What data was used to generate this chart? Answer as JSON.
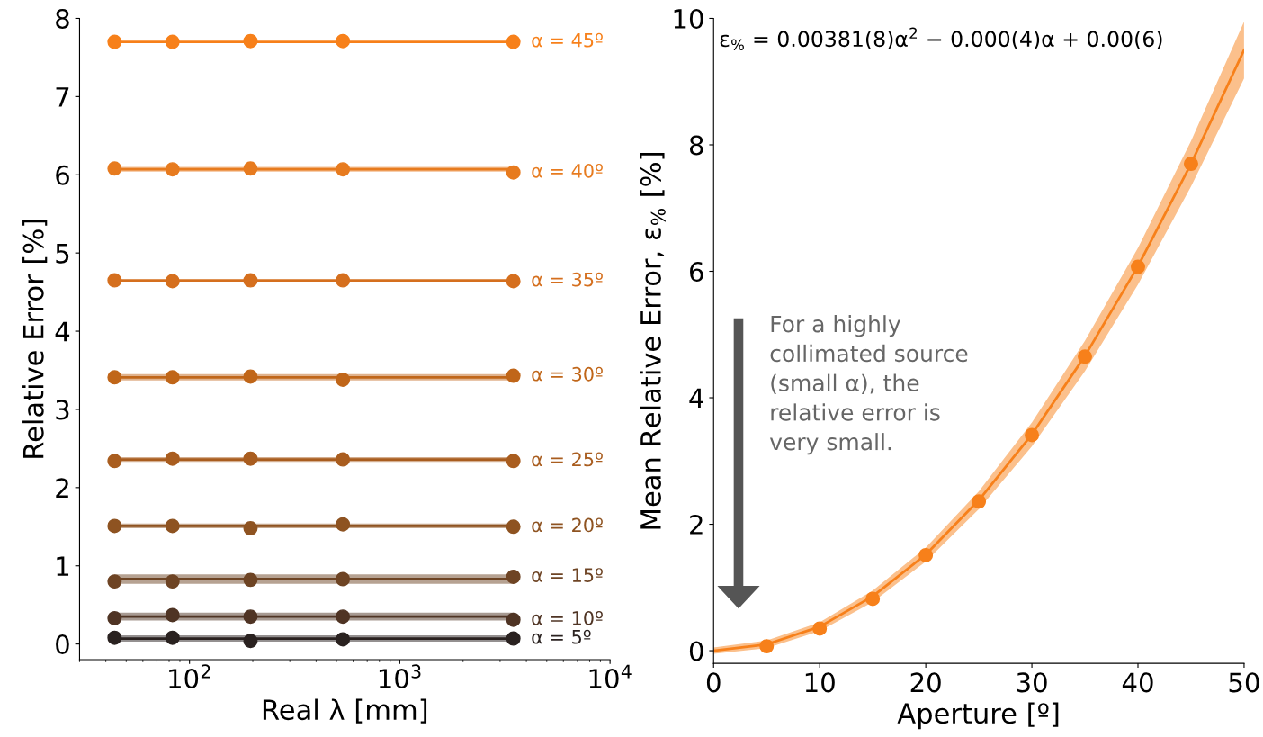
{
  "chart_data": [
    {
      "type": "line",
      "xlabel": "Real λ [mm]",
      "ylabel": "Relative Error [%]",
      "log": "x",
      "xlim": [
        30,
        10000
      ],
      "xticks": [
        {
          "value": 100,
          "label": "10$^{2}$"
        },
        {
          "value": 1000,
          "label": "10$^{3}$"
        },
        {
          "value": 10000,
          "label": "10$^{4}$"
        }
      ],
      "ylim": [
        -0.2,
        8
      ],
      "yticks": [
        0,
        1,
        2,
        3,
        4,
        5,
        6,
        7,
        8
      ],
      "series": [
        {
          "color": "#f7801a",
          "x": [
            44,
            3470
          ],
          "values": [
            7.7,
            7.7
          ]
        },
        {
          "name": "α = 45º",
          "type": "scatter",
          "marker": "circle",
          "color": "#f7801a",
          "x": [
            44,
            83,
            195,
            536,
            3470
          ],
          "values": [
            7.7,
            7.7,
            7.71,
            7.71,
            7.7
          ]
        },
        {
          "color": "#e77b1f",
          "x": [
            44,
            3470
          ],
          "values": [
            6.07,
            6.07
          ],
          "lower": [
            6.04,
            6.04
          ],
          "upper": [
            6.1,
            6.1
          ]
        },
        {
          "name": "α = 40º",
          "type": "scatter",
          "marker": "circle",
          "color": "#e77b1f",
          "x": [
            44,
            83,
            195,
            536,
            3470
          ],
          "values": [
            6.08,
            6.07,
            6.08,
            6.07,
            6.03
          ]
        },
        {
          "color": "#d56f1e",
          "x": [
            44,
            3470
          ],
          "values": [
            4.65,
            4.65
          ]
        },
        {
          "name": "α = 35º",
          "type": "scatter",
          "marker": "circle",
          "color": "#d56f1e",
          "x": [
            44,
            83,
            195,
            536,
            3470
          ],
          "values": [
            4.65,
            4.64,
            4.65,
            4.65,
            4.64
          ]
        },
        {
          "color": "#c06619",
          "x": [
            44,
            3470
          ],
          "values": [
            3.41,
            3.41
          ],
          "lower": [
            3.37,
            3.37
          ],
          "upper": [
            3.45,
            3.45
          ]
        },
        {
          "name": "α = 30º",
          "type": "scatter",
          "marker": "circle",
          "color": "#c06619",
          "x": [
            44,
            83,
            195,
            536,
            3470
          ],
          "values": [
            3.41,
            3.41,
            3.42,
            3.38,
            3.43
          ]
        },
        {
          "color": "#a95d1f",
          "x": [
            44,
            3470
          ],
          "values": [
            2.36,
            2.36
          ],
          "lower": [
            2.33,
            2.33
          ],
          "upper": [
            2.39,
            2.39
          ]
        },
        {
          "name": "α = 25º",
          "type": "scatter",
          "marker": "circle",
          "color": "#a95d1f",
          "x": [
            44,
            83,
            195,
            536,
            3470
          ],
          "values": [
            2.34,
            2.37,
            2.37,
            2.36,
            2.34
          ]
        },
        {
          "color": "#8e5321",
          "x": [
            44,
            3470
          ],
          "values": [
            1.51,
            1.51
          ],
          "lower": [
            1.48,
            1.48
          ],
          "upper": [
            1.54,
            1.54
          ]
        },
        {
          "name": "α = 20º",
          "type": "scatter",
          "marker": "circle",
          "color": "#8e5321",
          "x": [
            44,
            83,
            195,
            536,
            3470
          ],
          "values": [
            1.51,
            1.51,
            1.48,
            1.53,
            1.5
          ]
        },
        {
          "color": "#6e4424",
          "x": [
            44,
            3470
          ],
          "values": [
            0.83,
            0.83
          ],
          "lower": [
            0.77,
            0.77
          ],
          "upper": [
            0.89,
            0.89
          ]
        },
        {
          "name": "α = 15º",
          "type": "scatter",
          "marker": "circle",
          "color": "#6e4424",
          "x": [
            44,
            83,
            195,
            536,
            3470
          ],
          "values": [
            0.8,
            0.8,
            0.82,
            0.83,
            0.86
          ]
        },
        {
          "color": "#4f3424",
          "x": [
            44,
            3470
          ],
          "values": [
            0.35,
            0.35
          ],
          "lower": [
            0.3,
            0.3
          ],
          "upper": [
            0.4,
            0.4
          ]
        },
        {
          "name": "α = 10º",
          "type": "scatter",
          "marker": "circle",
          "color": "#4f3424",
          "x": [
            44,
            83,
            195,
            536,
            3470
          ],
          "values": [
            0.33,
            0.37,
            0.35,
            0.35,
            0.31
          ]
        },
        {
          "color": "#2a2220",
          "x": [
            44,
            3470
          ],
          "values": [
            0.07,
            0.07
          ],
          "lower": [
            0.03,
            0.03
          ],
          "upper": [
            0.11,
            0.11
          ]
        },
        {
          "name": "α = 5º",
          "type": "scatter",
          "marker": "circle",
          "color": "#2a2220",
          "x": [
            44,
            83,
            195,
            536,
            3470
          ],
          "values": [
            0.08,
            0.08,
            0.04,
            0.06,
            0.07
          ]
        }
      ]
    },
    {
      "type": "line",
      "xlabel": "Aperture [º]",
      "ylabel": "Mean Relative Error, ε$_{%}$ [%]",
      "xlim": [
        0,
        50
      ],
      "xticks": [
        0,
        10,
        20,
        30,
        40,
        50
      ],
      "ylim": [
        -0.2,
        10
      ],
      "yticks": [
        0,
        2,
        4,
        6,
        8,
        10
      ],
      "annotations": [
        "ε$_{%}$ = 0.00381(8)α$^{2}$ − 0.000(4)α + 0.00(6)",
        "For a highly\ncollimated source\n(small α), the\nrelative error is\nvery small."
      ],
      "series": [
        {
          "color": "#f7801a",
          "x": [
            0,
            5,
            10,
            15,
            20,
            25,
            30,
            35,
            40,
            45,
            50
          ],
          "values": [
            0.0,
            0.1,
            0.38,
            0.86,
            1.52,
            2.38,
            3.42,
            4.66,
            6.08,
            7.7,
            9.5
          ],
          "lower": [
            -0.05,
            0.04,
            0.31,
            0.77,
            1.41,
            2.24,
            3.23,
            4.42,
            5.79,
            7.34,
            9.05
          ],
          "upper": [
            0.05,
            0.16,
            0.45,
            0.95,
            1.63,
            2.52,
            3.61,
            4.9,
            6.37,
            8.06,
            9.95
          ]
        },
        {
          "type": "scatter",
          "marker": "circle",
          "color": "#f7801a",
          "x": [
            5,
            10,
            15,
            20,
            25,
            30,
            35,
            40,
            45
          ],
          "values": [
            0.07,
            0.35,
            0.82,
            1.51,
            2.36,
            3.41,
            4.65,
            6.07,
            7.7
          ]
        }
      ]
    }
  ]
}
